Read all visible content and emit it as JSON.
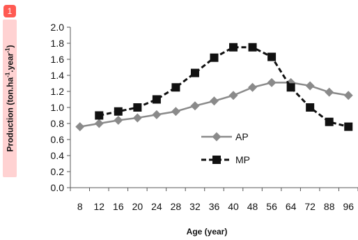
{
  "badge": {
    "label": "1"
  },
  "chart_data": {
    "type": "line",
    "title": "",
    "ylabel": {
      "main": "Production  (ton.ha",
      "sup1": "-1",
      "mid": ".year",
      "sup2": "-1",
      "end": ")"
    },
    "xlabel": "Age (year)",
    "categories": [
      "8",
      "12",
      "16",
      "20",
      "24",
      "28",
      "32",
      "36",
      "40",
      "48",
      "56",
      "64",
      "72",
      "88",
      "96"
    ],
    "ylim": [
      0,
      2.0
    ],
    "yticks": [
      0.0,
      0.2,
      0.4,
      0.6,
      0.8,
      1.0,
      1.2,
      1.4,
      1.6,
      1.8,
      2.0
    ],
    "yticklabels": [
      "0.0",
      "0.2",
      "0.4",
      "0.6",
      "0.8",
      "1.0",
      "1.2",
      "1.4",
      "1.6",
      "1.8",
      "2.0"
    ],
    "grid": false,
    "legend_position": "center-right",
    "series": [
      {
        "name": "AP",
        "marker": "diamond",
        "line_style": "solid",
        "color": "#8a8a8a",
        "values": [
          0.76,
          0.8,
          0.84,
          0.87,
          0.91,
          0.95,
          1.02,
          1.08,
          1.15,
          1.25,
          1.31,
          1.31,
          1.27,
          1.19,
          1.15
        ]
      },
      {
        "name": "MP",
        "marker": "square",
        "line_style": "dashed",
        "color": "#111111",
        "values": [
          null,
          0.9,
          0.95,
          1.0,
          1.1,
          1.25,
          1.43,
          1.62,
          1.75,
          1.75,
          1.63,
          1.25,
          1.0,
          0.82,
          0.76
        ]
      }
    ]
  }
}
